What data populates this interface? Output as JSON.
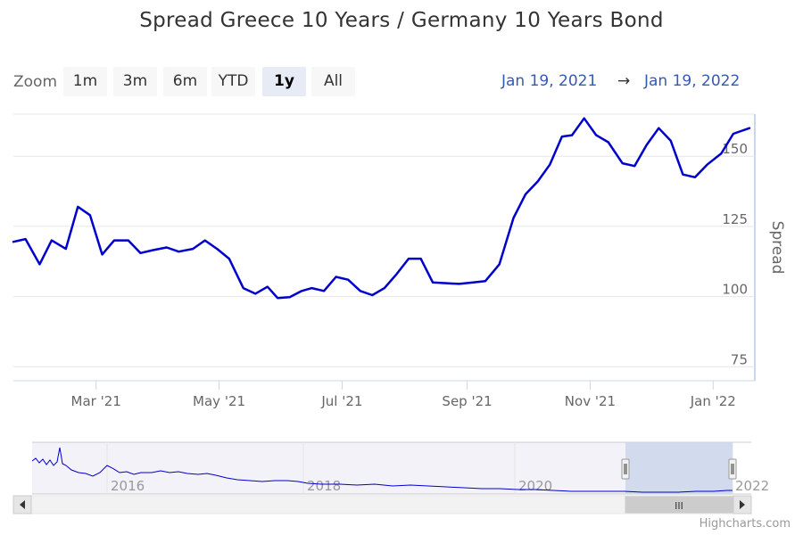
{
  "title": "Spread Greece 10 Years / Germany 10 Years Bond",
  "zoom": {
    "label": "Zoom",
    "buttons": [
      "1m",
      "3m",
      "6m",
      "YTD",
      "1y",
      "All"
    ],
    "active": "1y"
  },
  "range": {
    "from": "Jan 19, 2021",
    "arrow": "→",
    "to": "Jan 19, 2022"
  },
  "credits": "Highcharts.com",
  "colors": {
    "series": "#0000cc",
    "navigator_mask": "#ccd6eb",
    "range_text": "#335cad"
  },
  "chart_data": {
    "type": "line",
    "title": "Spread Greece 10 Years / Germany 10 Years Bond",
    "ylabel": "Spread",
    "xlabel": "",
    "ylim": [
      70,
      165
    ],
    "xlim": [
      "2021-01-19",
      "2022-01-19"
    ],
    "yticks": [
      75,
      100,
      125,
      150
    ],
    "xticks": [
      {
        "date": "2021-03-01",
        "label": "Mar '21"
      },
      {
        "date": "2021-05-01",
        "label": "May '21"
      },
      {
        "date": "2021-07-01",
        "label": "Jul '21"
      },
      {
        "date": "2021-09-01",
        "label": "Sep '21"
      },
      {
        "date": "2021-11-01",
        "label": "Nov '21"
      },
      {
        "date": "2022-01-01",
        "label": "Jan '22"
      }
    ],
    "grid": true,
    "series": [
      {
        "x": [
          "2021-01-19",
          "2021-01-25",
          "2021-02-01",
          "2021-02-07",
          "2021-02-14",
          "2021-02-20",
          "2021-02-26",
          "2021-03-04",
          "2021-03-10",
          "2021-03-17",
          "2021-03-23",
          "2021-03-29",
          "2021-04-05",
          "2021-04-11",
          "2021-04-18",
          "2021-04-24",
          "2021-04-30",
          "2021-05-06",
          "2021-05-13",
          "2021-05-19",
          "2021-05-25",
          "2021-05-30",
          "2021-06-05",
          "2021-06-11",
          "2021-06-16",
          "2021-06-22",
          "2021-06-28",
          "2021-07-04",
          "2021-07-10",
          "2021-07-16",
          "2021-07-22",
          "2021-07-28",
          "2021-08-03",
          "2021-08-09",
          "2021-08-15",
          "2021-08-28",
          "2021-09-04",
          "2021-09-10",
          "2021-09-17",
          "2021-09-24",
          "2021-09-30",
          "2021-10-06",
          "2021-10-12",
          "2021-10-18",
          "2021-10-23",
          "2021-10-29",
          "2021-11-04",
          "2021-11-10",
          "2021-11-17",
          "2021-11-23",
          "2021-11-29",
          "2021-12-05",
          "2021-12-11",
          "2021-12-17",
          "2021-12-23",
          "2021-12-29",
          "2022-01-05",
          "2022-01-11",
          "2022-01-19"
        ],
        "values": [
          119.5,
          120.5,
          111.5,
          120,
          117,
          132,
          129,
          115,
          120,
          120,
          115.5,
          116.5,
          117.5,
          116,
          117,
          120,
          117,
          113.5,
          103,
          101,
          103.5,
          99.5,
          99.8,
          102,
          103,
          102,
          107,
          106,
          102,
          100.5,
          103,
          108,
          113.5,
          113.5,
          105,
          104.5,
          105,
          105.5,
          111.5,
          128,
          136.5,
          141,
          147,
          157,
          157.5,
          163.5,
          157.5,
          155,
          147.5,
          146.5,
          154,
          160,
          155.5,
          143.5,
          142.5,
          147,
          151,
          158,
          160
        ]
      }
    ]
  },
  "navigator": {
    "labels": [
      "2016",
      "2018",
      "2020",
      "2022"
    ],
    "scroll_thumb": "III"
  }
}
